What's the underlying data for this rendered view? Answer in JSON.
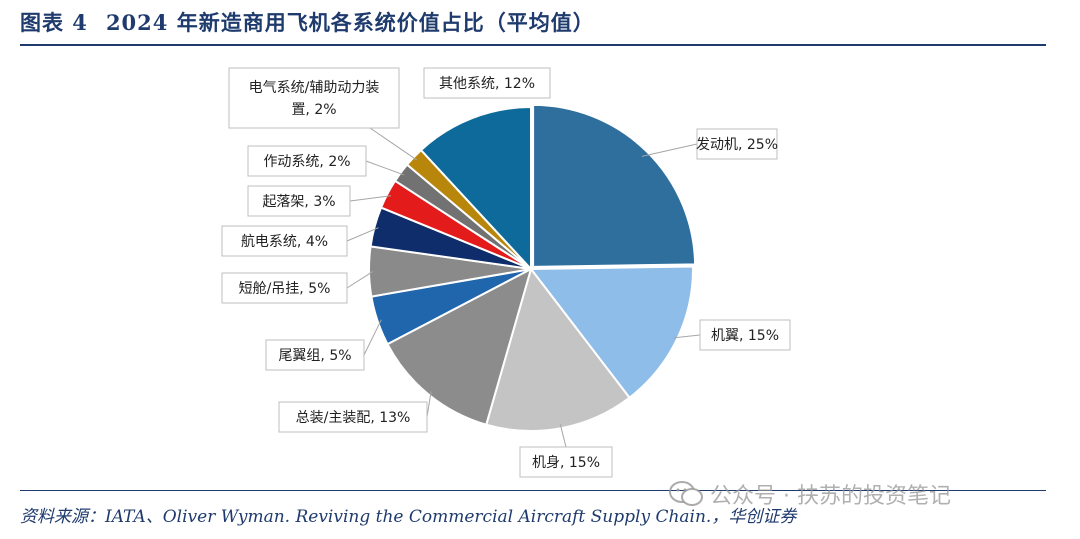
{
  "header": {
    "figure_number": "图表 4",
    "title": "2024 年新造商用飞机各系统价值占比（平均值）"
  },
  "source": {
    "text": "资料来源：IATA、Oliver Wyman. Reviving the Commercial Aircraft Supply Chain.，华创证券"
  },
  "watermark": {
    "text": "公众号 · 扶苏的投资笔记",
    "icon": "wechat-icon"
  },
  "chart_data": {
    "type": "pie",
    "title": "2024 年新造商用飞机各系统价值占比（平均值）",
    "start_angle": "12 o'clock",
    "direction": "clockwise",
    "slices": [
      {
        "label": "发动机",
        "value": 25,
        "text": "发动机, 25%",
        "color": "#2e6f9e"
      },
      {
        "label": "机翼",
        "value": 15,
        "text": "机翼, 15%",
        "color": "#8dbde8"
      },
      {
        "label": "机身",
        "value": 15,
        "text": "机身, 15%",
        "color": "#c4c4c4"
      },
      {
        "label": "总装/主装配",
        "value": 13,
        "text": "总装/主装配, 13%",
        "color": "#8c8c8c"
      },
      {
        "label": "尾翼组",
        "value": 5,
        "text": "尾翼组, 5%",
        "color": "#2066ad"
      },
      {
        "label": "短舱/吊挂",
        "value": 5,
        "text": "短舱/吊挂, 5%",
        "color": "#8a8a8a"
      },
      {
        "label": "航电系统",
        "value": 4,
        "text": "航电系统, 4%",
        "color": "#0f2d6b"
      },
      {
        "label": "起落架",
        "value": 3,
        "text": "起落架, 3%",
        "color": "#e31b1b"
      },
      {
        "label": "作动系统",
        "value": 2,
        "text": "作动系统, 2%",
        "color": "#727272"
      },
      {
        "label": "电气系统/辅助动力装置",
        "value": 2,
        "text_lines": [
          "电气系统/辅助动力装",
          "置, 2%"
        ],
        "color": "#b8860b"
      },
      {
        "label": "其他系统",
        "value": 12,
        "text": "其他系统, 12%",
        "color": "#0f6a9c"
      }
    ]
  }
}
